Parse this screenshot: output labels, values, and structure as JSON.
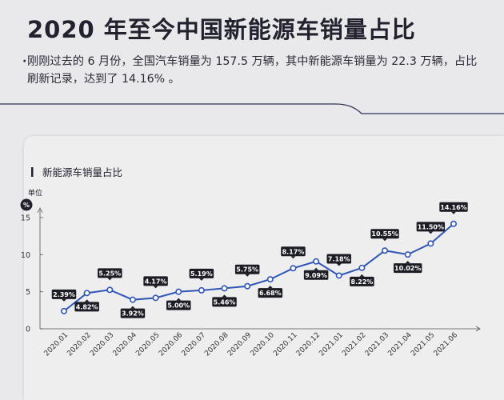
{
  "page": {
    "title": "2020 年至今中国新能源车销量占比",
    "intro_bullet": "·",
    "intro": "刚刚过去的 6 月份，全国汽车销量为 157.5 万辆，其中新能源车销量为 22.3 万辆，占比刷新记录，达到了 14.16% 。"
  },
  "chart_data": {
    "type": "line",
    "title": "新能源车销量占比",
    "unit_label": "单位",
    "unit_symbol": "%",
    "xlabel": "",
    "ylabel": "",
    "ylim": [
      0,
      15
    ],
    "yticks": [
      0,
      5,
      10,
      15
    ],
    "grid": false,
    "categories": [
      "2020.01",
      "2020.02",
      "2020.03",
      "2020.04",
      "2020.05",
      "2020.06",
      "2020.07",
      "2020.08",
      "2020.09",
      "2020.10",
      "2020.11",
      "2020.12",
      "2021.01",
      "2021.02",
      "2021.03",
      "2021.04",
      "2021.05",
      "2021.06"
    ],
    "values": [
      2.39,
      4.82,
      5.25,
      3.92,
      4.17,
      5.0,
      5.19,
      5.46,
      5.75,
      6.68,
      8.17,
      9.09,
      7.18,
      8.22,
      10.55,
      10.02,
      11.5,
      14.16
    ],
    "labels": [
      "2.39%",
      "4.82%",
      "5.25%",
      "3.92%",
      "4.17%",
      "5.00%",
      "5.19%",
      "5.46%",
      "5.75%",
      "6.68%",
      "8.17%",
      "9.09%",
      "7.18%",
      "8.22%",
      "10.55%",
      "10.02%",
      "11.50%",
      "14.16%"
    ],
    "line_color": "#2f55b5"
  }
}
